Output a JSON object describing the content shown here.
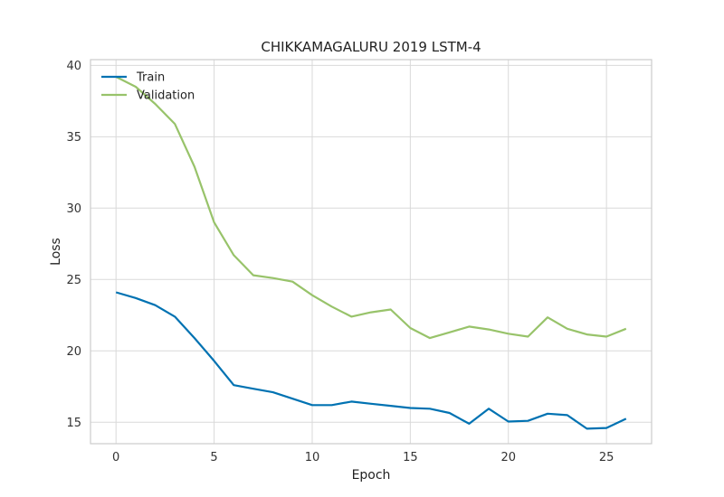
{
  "chart_data": {
    "type": "line",
    "title": "CHIKKAMAGALURU 2019 LSTM-4",
    "xlabel": "Epoch",
    "ylabel": "Loss",
    "xlim": [
      -1.3,
      27.3
    ],
    "ylim": [
      13.5,
      40.4
    ],
    "xticks": [
      0,
      5,
      10,
      15,
      20,
      25
    ],
    "yticks": [
      15,
      20,
      25,
      30,
      35,
      40
    ],
    "grid": true,
    "legend_position": "top-left",
    "x": [
      0,
      1,
      2,
      3,
      4,
      5,
      6,
      7,
      8,
      9,
      10,
      11,
      12,
      13,
      14,
      15,
      16,
      17,
      18,
      19,
      20,
      21,
      22,
      23,
      24,
      25,
      26
    ],
    "series": [
      {
        "name": "Train",
        "color": "#0072b2",
        "values": [
          24.1,
          23.7,
          23.2,
          22.4,
          20.9,
          19.3,
          17.6,
          17.35,
          17.1,
          16.65,
          16.2,
          16.2,
          16.45,
          16.3,
          16.15,
          16.0,
          15.95,
          15.65,
          14.9,
          15.95,
          15.05,
          15.1,
          15.6,
          15.5,
          14.55,
          14.6,
          15.25
        ]
      },
      {
        "name": "Validation",
        "color": "#98c36a",
        "values": [
          39.2,
          38.5,
          37.3,
          35.9,
          32.9,
          29.0,
          26.7,
          25.3,
          25.1,
          24.85,
          23.9,
          23.1,
          22.4,
          22.7,
          22.9,
          21.6,
          20.9,
          21.3,
          21.7,
          21.5,
          21.2,
          21.0,
          22.35,
          21.55,
          21.15,
          21.0,
          21.55
        ]
      }
    ]
  }
}
